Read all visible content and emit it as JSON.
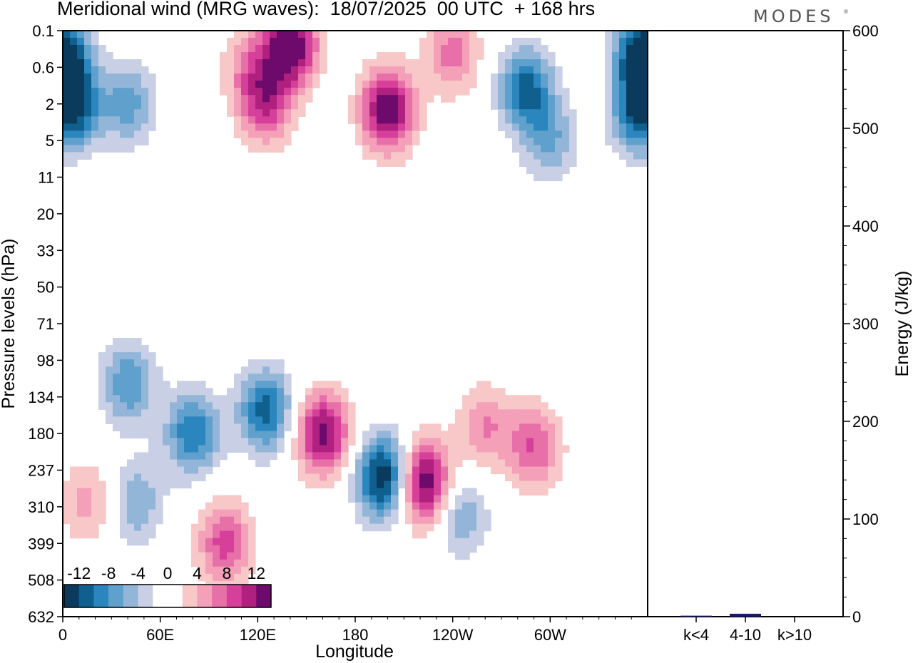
{
  "title": "Meridional wind (MRG waves):  18/07/2025  00 UTC  + 168 hrs",
  "brand": "MODES",
  "brand_mark": "®",
  "chart_data": [
    {
      "type": "heatmap",
      "title": "Meridional wind (MRG waves):  18/07/2025  00 UTC  + 168 hrs",
      "xlabel": "Longitude",
      "ylabel": "Pressure levels (hPa)",
      "x_ticks": [
        "0",
        "60E",
        "120E",
        "180",
        "120W",
        "60W"
      ],
      "y_ticks": [
        "0.1",
        "0.6",
        "2",
        "5",
        "11",
        "20",
        "33",
        "50",
        "71",
        "98",
        "134",
        "180",
        "237",
        "310",
        "399",
        "508",
        "632"
      ],
      "y_scale": "reversed pressure levels",
      "colorbar": {
        "labels": [
          "-12",
          "-8",
          "-4",
          "0",
          "4",
          "8",
          "12"
        ],
        "colors": [
          "#0a3a5c",
          "#0f5f8f",
          "#2b86be",
          "#5fa0cc",
          "#93b6d8",
          "#c9cfe5",
          "#ffffff",
          "#ffffff",
          "#f8c8c8",
          "#f4a0b8",
          "#e870a8",
          "#d6409a",
          "#b0207f",
          "#6d0a6b"
        ]
      },
      "blobs": [
        {
          "lon": 0,
          "lev": 0.4,
          "v": -14
        },
        {
          "lon": 5,
          "lev": 2.2,
          "v": -13
        },
        {
          "lon": 40,
          "lev": 2,
          "v": -7
        },
        {
          "lon": 140,
          "lev": 0.2,
          "v": 15
        },
        {
          "lon": 115,
          "lev": 0.6,
          "v": 5
        },
        {
          "lon": 125,
          "lev": 2.0,
          "v": 9
        },
        {
          "lon": 200,
          "lev": 2.3,
          "v": 14
        },
        {
          "lon": 240,
          "lev": 0.3,
          "v": 7
        },
        {
          "lon": 285,
          "lev": 1.2,
          "v": -11
        },
        {
          "lon": 300,
          "lev": 5,
          "v": -6
        },
        {
          "lon": 357,
          "lev": 0.3,
          "v": -15
        },
        {
          "lon": 355,
          "lev": 2.5,
          "v": -12
        },
        {
          "lon": 40,
          "lev": 120,
          "v": -8
        },
        {
          "lon": 80,
          "lev": 180,
          "v": -10
        },
        {
          "lon": 125,
          "lev": 150,
          "v": -11
        },
        {
          "lon": 160,
          "lev": 180,
          "v": 13
        },
        {
          "lon": 198,
          "lev": 250,
          "v": -15
        },
        {
          "lon": 222,
          "lev": 260,
          "v": 15
        },
        {
          "lon": 260,
          "lev": 170,
          "v": 6
        },
        {
          "lon": 290,
          "lev": 200,
          "v": 8
        },
        {
          "lon": 15,
          "lev": 300,
          "v": 5
        },
        {
          "lon": 100,
          "lev": 400,
          "v": 9
        },
        {
          "lon": 45,
          "lev": 300,
          "v": -6
        },
        {
          "lon": 245,
          "lev": 330,
          "v": -6
        }
      ]
    },
    {
      "type": "bar",
      "ylabel": "Energy (J/kg)",
      "categories": [
        "k<4",
        "4-10",
        "k>10"
      ],
      "values": [
        1,
        3,
        0
      ],
      "ylim": [
        0,
        600
      ],
      "y_ticks": [
        "0",
        "100",
        "200",
        "300",
        "400",
        "500",
        "600"
      ],
      "bar_color": "#1a1a6e"
    }
  ]
}
